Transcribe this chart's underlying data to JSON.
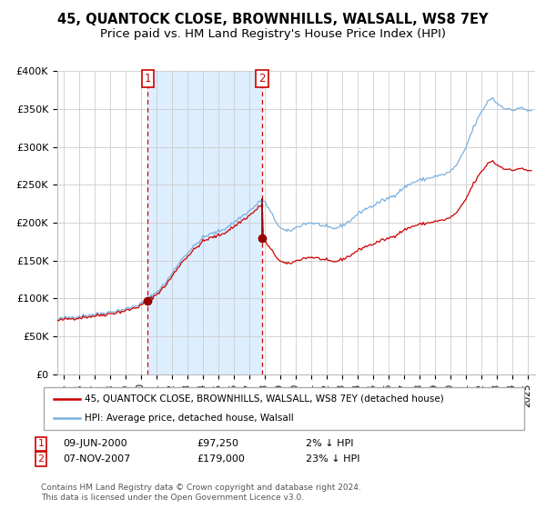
{
  "title": "45, QUANTOCK CLOSE, BROWNHILLS, WALSALL, WS8 7EY",
  "subtitle": "Price paid vs. HM Land Registry's House Price Index (HPI)",
  "ylim": [
    0,
    400000
  ],
  "yticks": [
    0,
    50000,
    100000,
    150000,
    200000,
    250000,
    300000,
    350000,
    400000
  ],
  "ytick_labels": [
    "£0",
    "£50K",
    "£100K",
    "£150K",
    "£200K",
    "£250K",
    "£300K",
    "£350K",
    "£400K"
  ],
  "xlim_start": 1994.6,
  "xlim_end": 2025.5,
  "xticks": [
    1995,
    1996,
    1997,
    1998,
    1999,
    2000,
    2001,
    2002,
    2003,
    2004,
    2005,
    2006,
    2007,
    2008,
    2009,
    2010,
    2011,
    2012,
    2013,
    2014,
    2015,
    2016,
    2017,
    2018,
    2019,
    2020,
    2021,
    2022,
    2023,
    2024,
    2025
  ],
  "hpi_color": "#7ab0de",
  "sale_color": "#cc0000",
  "sale_dot_color": "#990000",
  "bg_fill_color": "#ddeeff",
  "dashed_line_color": "#cc0000",
  "grid_color": "#cccccc",
  "title_fontsize": 10.5,
  "subtitle_fontsize": 9.5,
  "tick_fontsize": 8,
  "legend_line1": "45, QUANTOCK CLOSE, BROWNHILLS, WALSALL, WS8 7EY (detached house)",
  "legend_line2": "HPI: Average price, detached house, Walsall",
  "annotation1_label": "1",
  "annotation1_year": 2000.44,
  "annotation1_price": 97250,
  "annotation1_date": "09-JUN-2000",
  "annotation1_price_str": "£97,250",
  "annotation1_pct": "2% ↓ HPI",
  "annotation2_label": "2",
  "annotation2_year": 2007.85,
  "annotation2_price": 179000,
  "annotation2_date": "07-NOV-2007",
  "annotation2_price_str": "£179,000",
  "annotation2_pct": "23% ↓ HPI",
  "footer1": "Contains HM Land Registry data © Crown copyright and database right 2024.",
  "footer2": "This data is licensed under the Open Government Licence v3.0."
}
